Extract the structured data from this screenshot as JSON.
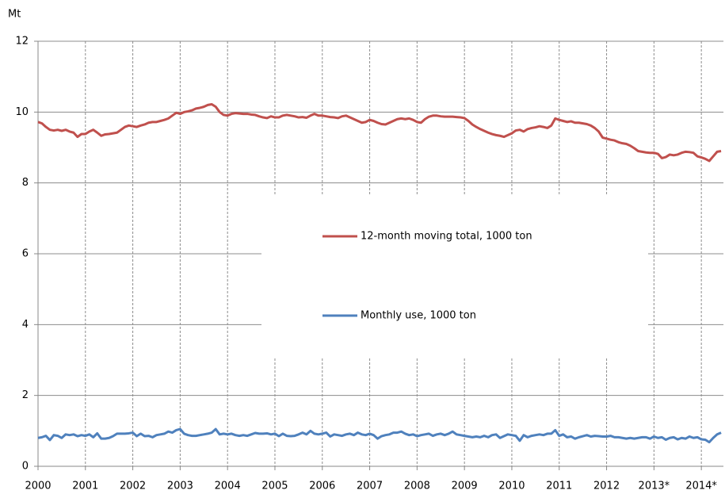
{
  "chart_data": {
    "type": "line",
    "y_label": "Mt",
    "categories": [
      "2000",
      null,
      null,
      null,
      null,
      null,
      null,
      null,
      null,
      null,
      null,
      null,
      "2001",
      null,
      null,
      null,
      null,
      null,
      null,
      null,
      null,
      null,
      null,
      null,
      "2002",
      null,
      null,
      null,
      null,
      null,
      null,
      null,
      null,
      null,
      null,
      null,
      "2003",
      null,
      null,
      null,
      null,
      null,
      null,
      null,
      null,
      null,
      null,
      null,
      "2004",
      null,
      null,
      null,
      null,
      null,
      null,
      null,
      null,
      null,
      null,
      null,
      "2005",
      null,
      null,
      null,
      null,
      null,
      null,
      null,
      null,
      null,
      null,
      null,
      "2006",
      null,
      null,
      null,
      null,
      null,
      null,
      null,
      null,
      null,
      null,
      null,
      "2007",
      null,
      null,
      null,
      null,
      null,
      null,
      null,
      null,
      null,
      null,
      null,
      "2008",
      null,
      null,
      null,
      null,
      null,
      null,
      null,
      null,
      null,
      null,
      null,
      "2009",
      null,
      null,
      null,
      null,
      null,
      null,
      null,
      null,
      null,
      null,
      null,
      "2010",
      null,
      null,
      null,
      null,
      null,
      null,
      null,
      null,
      null,
      null,
      null,
      "2011",
      null,
      null,
      null,
      null,
      null,
      null,
      null,
      null,
      null,
      null,
      null,
      "2012",
      null,
      null,
      null,
      null,
      null,
      null,
      null,
      null,
      null,
      null,
      null,
      "2013*",
      null,
      null,
      null,
      null,
      null,
      null,
      null,
      null,
      null,
      null,
      null,
      "2014*",
      null,
      null,
      null,
      null,
      null
    ],
    "series": [
      {
        "name": "12-month moving total, 1000 ton",
        "color": "#c0504d",
        "values": [
          9.72,
          9.68,
          9.58,
          9.5,
          9.48,
          9.5,
          9.47,
          9.5,
          9.45,
          9.42,
          9.3,
          9.38,
          9.38,
          9.45,
          9.5,
          9.42,
          9.33,
          9.37,
          9.38,
          9.4,
          9.42,
          9.5,
          9.58,
          9.62,
          9.6,
          9.58,
          9.62,
          9.65,
          9.7,
          9.72,
          9.72,
          9.75,
          9.78,
          9.82,
          9.9,
          9.98,
          9.95,
          10.0,
          10.02,
          10.05,
          10.1,
          10.12,
          10.15,
          10.2,
          10.22,
          10.15,
          10.0,
          9.92,
          9.9,
          9.95,
          9.97,
          9.96,
          9.95,
          9.95,
          9.93,
          9.92,
          9.88,
          9.85,
          9.83,
          9.88,
          9.85,
          9.85,
          9.9,
          9.92,
          9.9,
          9.88,
          9.85,
          9.86,
          9.84,
          9.9,
          9.95,
          9.9,
          9.9,
          9.88,
          9.86,
          9.85,
          9.83,
          9.88,
          9.9,
          9.85,
          9.8,
          9.75,
          9.7,
          9.72,
          9.78,
          9.75,
          9.7,
          9.66,
          9.65,
          9.7,
          9.75,
          9.8,
          9.82,
          9.8,
          9.82,
          9.78,
          9.72,
          9.7,
          9.8,
          9.87,
          9.9,
          9.9,
          9.88,
          9.87,
          9.87,
          9.87,
          9.86,
          9.85,
          9.83,
          9.75,
          9.65,
          9.58,
          9.52,
          9.47,
          9.42,
          9.38,
          9.35,
          9.33,
          9.3,
          9.35,
          9.4,
          9.48,
          9.5,
          9.45,
          9.52,
          9.55,
          9.57,
          9.6,
          9.58,
          9.55,
          9.62,
          9.82,
          9.78,
          9.75,
          9.72,
          9.74,
          9.7,
          9.7,
          9.68,
          9.66,
          9.62,
          9.55,
          9.45,
          9.28,
          9.25,
          9.22,
          9.2,
          9.15,
          9.12,
          9.1,
          9.05,
          8.98,
          8.9,
          8.88,
          8.86,
          8.85,
          8.85,
          8.82,
          8.7,
          8.73,
          8.8,
          8.78,
          8.8,
          8.85,
          8.88,
          8.87,
          8.85,
          8.75,
          8.72,
          8.68,
          8.62,
          8.75,
          8.88,
          8.9
        ]
      },
      {
        "name": "Monthly use, 1000 ton",
        "color": "#4f81bd",
        "values": [
          0.8,
          0.82,
          0.86,
          0.74,
          0.88,
          0.86,
          0.8,
          0.9,
          0.88,
          0.9,
          0.85,
          0.88,
          0.86,
          0.9,
          0.82,
          0.93,
          0.78,
          0.78,
          0.8,
          0.85,
          0.92,
          0.92,
          0.92,
          0.93,
          0.95,
          0.85,
          0.92,
          0.85,
          0.86,
          0.82,
          0.88,
          0.9,
          0.92,
          0.98,
          0.95,
          1.02,
          1.05,
          0.92,
          0.88,
          0.86,
          0.86,
          0.88,
          0.9,
          0.92,
          0.95,
          1.05,
          0.9,
          0.92,
          0.9,
          0.92,
          0.88,
          0.86,
          0.88,
          0.86,
          0.9,
          0.94,
          0.92,
          0.92,
          0.93,
          0.9,
          0.92,
          0.85,
          0.92,
          0.86,
          0.85,
          0.86,
          0.9,
          0.95,
          0.9,
          1.0,
          0.92,
          0.9,
          0.92,
          0.95,
          0.84,
          0.9,
          0.88,
          0.86,
          0.9,
          0.92,
          0.88,
          0.95,
          0.9,
          0.88,
          0.92,
          0.88,
          0.78,
          0.85,
          0.88,
          0.9,
          0.95,
          0.95,
          0.98,
          0.92,
          0.88,
          0.9,
          0.85,
          0.88,
          0.9,
          0.92,
          0.86,
          0.9,
          0.92,
          0.88,
          0.92,
          0.98,
          0.9,
          0.88,
          0.86,
          0.84,
          0.82,
          0.84,
          0.82,
          0.86,
          0.82,
          0.88,
          0.9,
          0.8,
          0.85,
          0.9,
          0.88,
          0.86,
          0.72,
          0.88,
          0.82,
          0.86,
          0.88,
          0.9,
          0.88,
          0.92,
          0.92,
          1.02,
          0.86,
          0.9,
          0.82,
          0.84,
          0.78,
          0.82,
          0.85,
          0.88,
          0.84,
          0.86,
          0.85,
          0.84,
          0.84,
          0.86,
          0.82,
          0.82,
          0.8,
          0.78,
          0.8,
          0.78,
          0.8,
          0.82,
          0.82,
          0.78,
          0.84,
          0.8,
          0.82,
          0.75,
          0.8,
          0.82,
          0.76,
          0.8,
          0.78,
          0.84,
          0.8,
          0.82,
          0.76,
          0.75,
          0.68,
          0.8,
          0.9,
          0.95
        ]
      }
    ],
    "ylim": [
      0,
      12
    ],
    "yticks": [
      0,
      2,
      4,
      6,
      8,
      10,
      12
    ],
    "grid": true,
    "legend": "center"
  }
}
